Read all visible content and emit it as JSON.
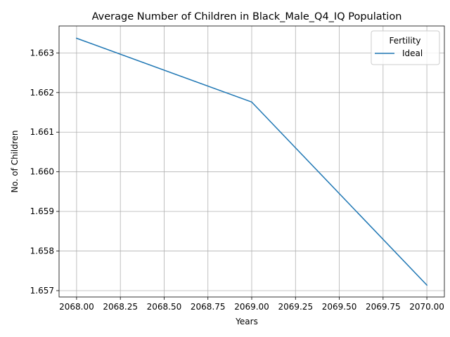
{
  "chart_data": {
    "type": "line",
    "title": "Average Number of Children in Black_Male_Q4_IQ Population",
    "xlabel": "Years",
    "ylabel": "No. of Children",
    "xlim": [
      2067.9,
      2070.1
    ],
    "ylim": [
      1.65684,
      1.66368
    ],
    "x_ticks": [
      2068.0,
      2068.25,
      2068.5,
      2068.75,
      2069.0,
      2069.25,
      2069.5,
      2069.75,
      2070.0
    ],
    "x_tick_labels": [
      "2068.00",
      "2068.25",
      "2068.50",
      "2068.75",
      "2069.00",
      "2069.25",
      "2069.50",
      "2069.75",
      "2070.00"
    ],
    "y_ticks": [
      1.657,
      1.658,
      1.659,
      1.66,
      1.661,
      1.662,
      1.663
    ],
    "y_tick_labels": [
      "1.657",
      "1.658",
      "1.659",
      "1.660",
      "1.661",
      "1.662",
      "1.663"
    ],
    "grid": true,
    "legend": {
      "title": "Fertility",
      "placement": "top-right"
    },
    "series": [
      {
        "name": "Ideal",
        "color": "#1f77b4",
        "x": [
          2068,
          2069,
          2070
        ],
        "y": [
          1.66337,
          1.66176,
          1.65714
        ]
      }
    ]
  }
}
